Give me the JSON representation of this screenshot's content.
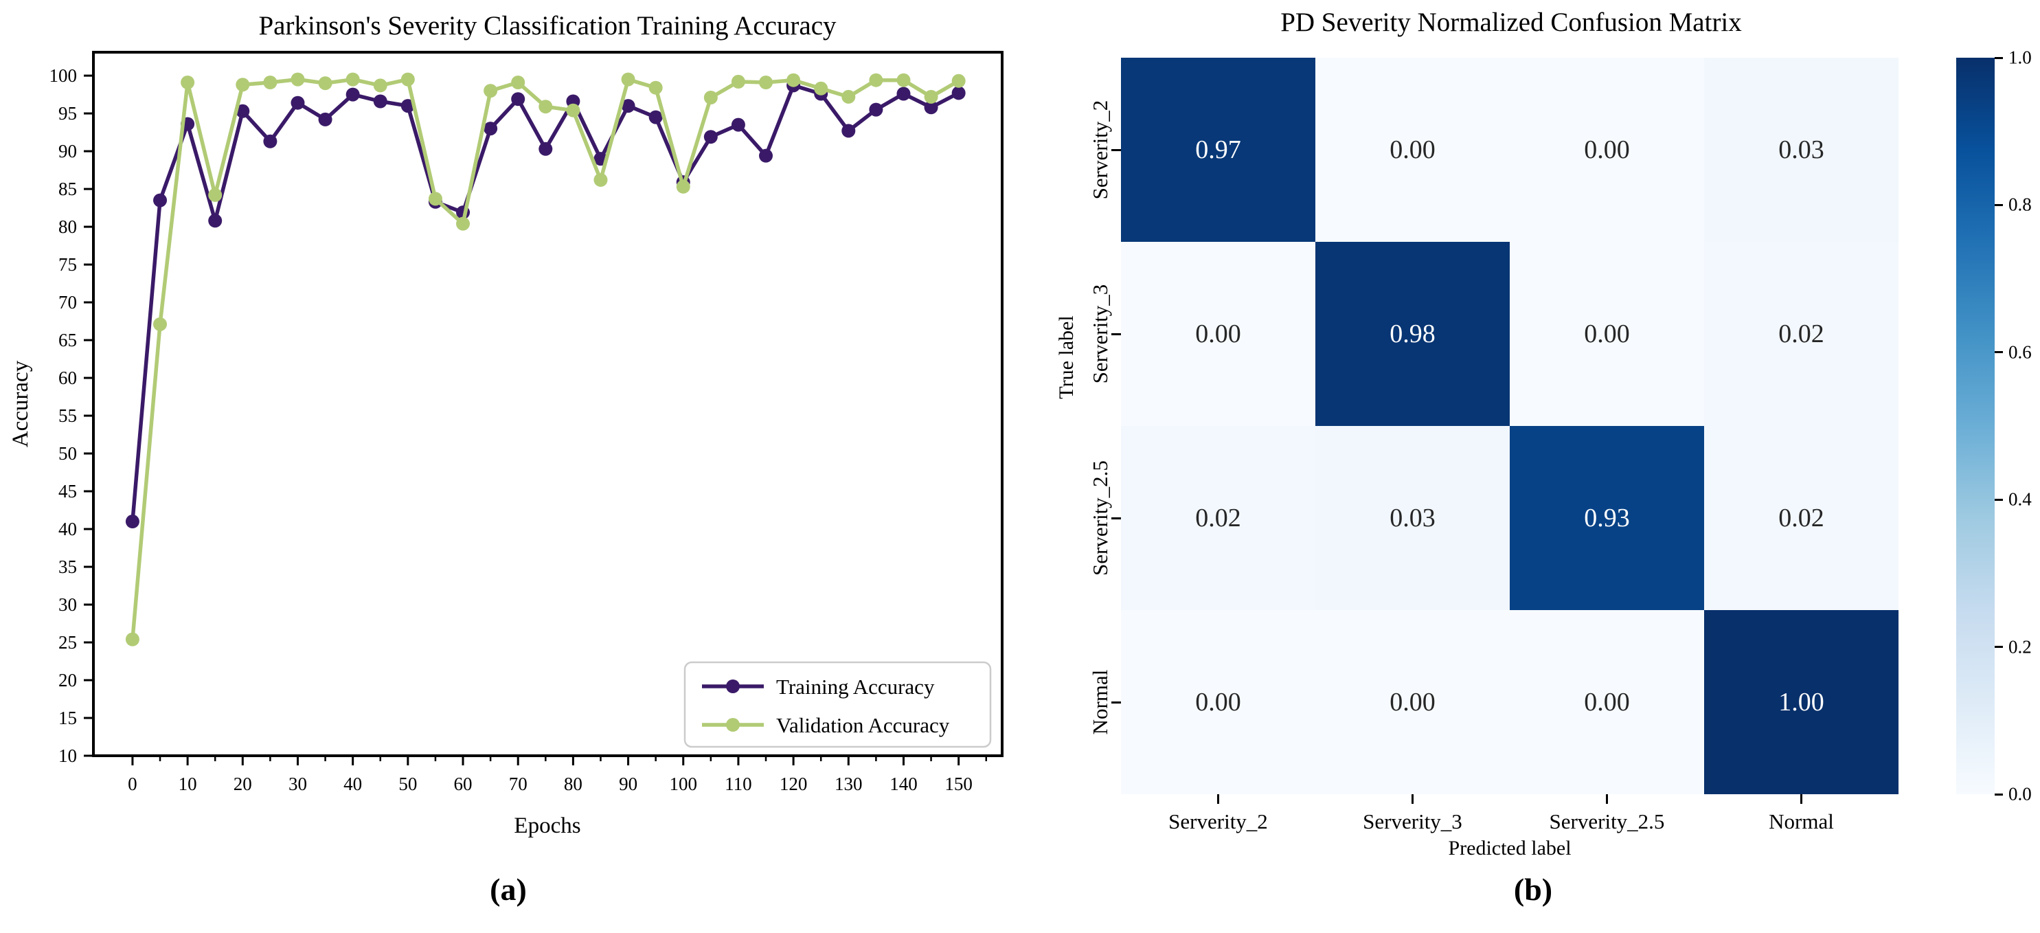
{
  "figure": {
    "panel_a_label": "(a)",
    "panel_b_label": "(b)"
  },
  "chart_data": [
    {
      "id": "training-accuracy-line-chart",
      "type": "line",
      "title": "Parkinson's Severity Classification Training Accuracy",
      "xlabel": "Epochs",
      "ylabel": "Accuracy",
      "xlim": [
        -7.1,
        157.9
      ],
      "ylim": [
        10,
        103.1
      ],
      "xticks": [
        0,
        10,
        20,
        30,
        40,
        50,
        60,
        70,
        80,
        90,
        100,
        110,
        120,
        130,
        140,
        150
      ],
      "xtick_minor_step": 5,
      "yticks": [
        10,
        15,
        20,
        25,
        30,
        35,
        40,
        45,
        50,
        55,
        60,
        65,
        70,
        75,
        80,
        85,
        90,
        95,
        100
      ],
      "grid": false,
      "legend_position": "lower right",
      "x": [
        0,
        5,
        10,
        15,
        20,
        25,
        30,
        35,
        40,
        45,
        50,
        55,
        60,
        65,
        70,
        75,
        80,
        85,
        90,
        95,
        100,
        105,
        110,
        115,
        120,
        125,
        130,
        135,
        140,
        145,
        150
      ],
      "series": [
        {
          "name": "Training Accuracy",
          "color": "#3a1a68",
          "values": [
            41.0,
            83.5,
            93.6,
            80.8,
            95.3,
            91.3,
            96.4,
            94.2,
            97.5,
            96.6,
            96.0,
            83.3,
            81.9,
            93.0,
            96.9,
            90.3,
            96.6,
            89.0,
            96.0,
            94.5,
            85.9,
            91.9,
            93.5,
            89.4,
            98.7,
            97.6,
            92.7,
            95.5,
            97.6,
            95.8,
            97.7
          ]
        },
        {
          "name": "Validation Accuracy",
          "color": "#b1cb75",
          "values": [
            25.4,
            67.1,
            99.1,
            84.2,
            98.8,
            99.1,
            99.5,
            99.0,
            99.5,
            98.7,
            99.5,
            83.7,
            80.4,
            98.0,
            99.1,
            95.9,
            95.4,
            86.2,
            99.5,
            98.4,
            85.3,
            97.1,
            99.2,
            99.1,
            99.4,
            98.3,
            97.2,
            99.4,
            99.4,
            97.2,
            99.3
          ]
        }
      ]
    },
    {
      "id": "confusion-matrix-heatmap",
      "type": "heatmap",
      "title": "PD Severity Normalized Confusion Matrix",
      "xlabel": "Predicted label",
      "ylabel": "True label",
      "categories": [
        "Serverity_2",
        "Serverity_3",
        "Serverity_2.5",
        "Normal"
      ],
      "matrix": [
        [
          0.97,
          0.0,
          0.0,
          0.03
        ],
        [
          0.0,
          0.98,
          0.0,
          0.02
        ],
        [
          0.02,
          0.03,
          0.93,
          0.02
        ],
        [
          0.0,
          0.0,
          0.0,
          1.0
        ]
      ],
      "vmin": 0.0,
      "vmax": 1.0,
      "colorbar_ticks": [
        1.0,
        0.8,
        0.6,
        0.4,
        0.2,
        0.0
      ],
      "colormap": "Blues",
      "colormap_anchors": [
        [
          0.0,
          "#f7fbff"
        ],
        [
          0.125,
          "#deebf7"
        ],
        [
          0.25,
          "#c6dbef"
        ],
        [
          0.375,
          "#9ecae1"
        ],
        [
          0.5,
          "#6baed6"
        ],
        [
          0.625,
          "#4292c6"
        ],
        [
          0.75,
          "#2171b5"
        ],
        [
          0.875,
          "#08519c"
        ],
        [
          1.0,
          "#08306b"
        ]
      ],
      "cell_text_light": "#ffffff",
      "cell_text_dark": "#262626"
    }
  ]
}
